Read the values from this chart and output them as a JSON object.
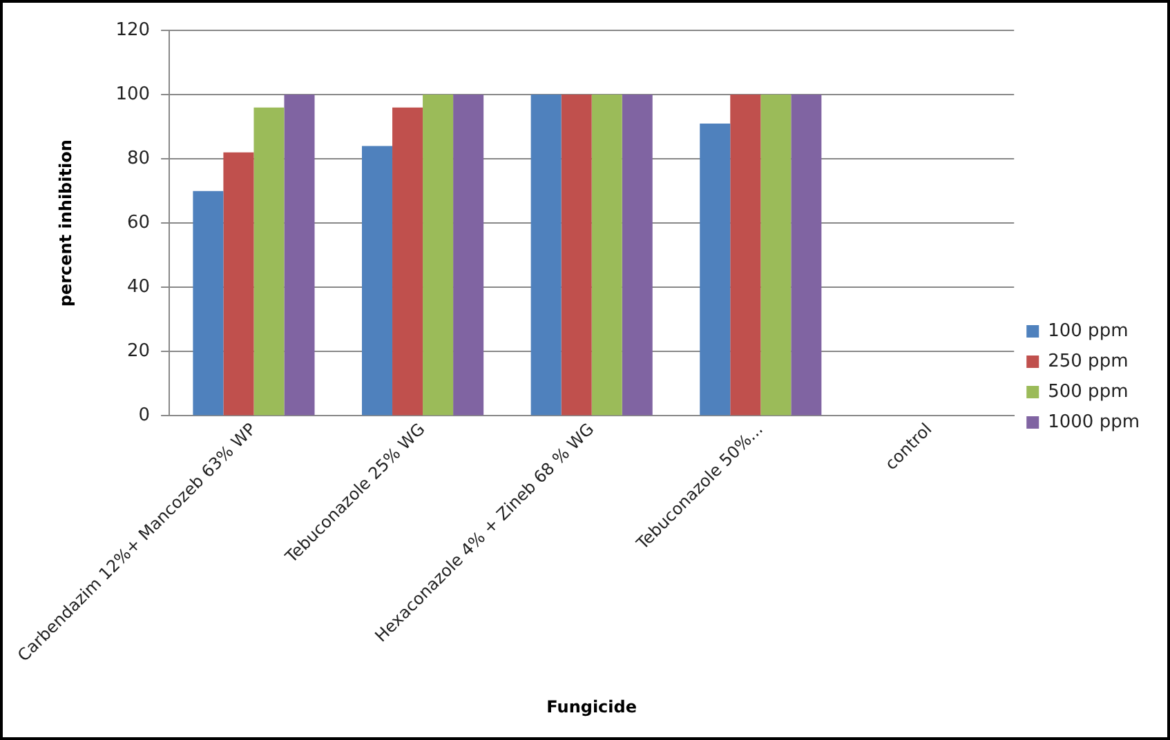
{
  "chart_data": {
    "type": "bar",
    "xlabel": "Fungicide",
    "ylabel": "percent inhibition",
    "categories": [
      "Carbendazim 12%+ Mancozeb 63% WP",
      "Tebuconazole 25% WG",
      "Hexaconazole 4% + Zineb 68 % WG",
      "Tebuconazole 50%...",
      "control"
    ],
    "series": [
      {
        "name": "100 ppm",
        "color": "#4f81bd",
        "values": [
          70,
          84,
          100,
          91,
          0
        ]
      },
      {
        "name": "250 ppm",
        "color": "#c0504d",
        "values": [
          82,
          96,
          100,
          100,
          0
        ]
      },
      {
        "name": "500 ppm",
        "color": "#9bbb59",
        "values": [
          96,
          100,
          100,
          100,
          0
        ]
      },
      {
        "name": "1000 ppm",
        "color": "#8064a2",
        "values": [
          100,
          100,
          100,
          100,
          0
        ]
      }
    ],
    "ylim": [
      0,
      120
    ],
    "yticks": [
      0,
      20,
      40,
      60,
      80,
      100,
      120
    ],
    "grid": "y",
    "legend": "right"
  }
}
